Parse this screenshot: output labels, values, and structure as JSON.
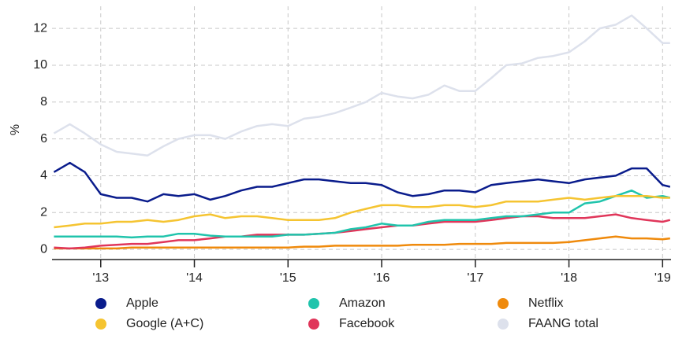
{
  "chart_data": {
    "type": "line",
    "ylabel": "%",
    "x": [
      2012.5,
      2012.67,
      2012.83,
      2013,
      2013.17,
      2013.33,
      2013.5,
      2013.67,
      2013.83,
      2014,
      2014.17,
      2014.33,
      2014.5,
      2014.67,
      2014.83,
      2015,
      2015.17,
      2015.33,
      2015.5,
      2015.67,
      2015.83,
      2016,
      2016.17,
      2016.33,
      2016.5,
      2016.67,
      2016.83,
      2017,
      2017.17,
      2017.33,
      2017.5,
      2017.67,
      2017.83,
      2018,
      2018.17,
      2018.33,
      2018.5,
      2018.67,
      2018.83,
      2019,
      2019.08
    ],
    "series": [
      {
        "name": "Apple",
        "color": "#0a1c8c",
        "values": [
          4.2,
          4.7,
          4.2,
          3.0,
          2.8,
          2.8,
          2.6,
          3.0,
          2.9,
          3.0,
          2.7,
          2.9,
          3.2,
          3.4,
          3.4,
          3.6,
          3.8,
          3.8,
          3.7,
          3.6,
          3.6,
          3.5,
          3.1,
          2.9,
          3.0,
          3.2,
          3.2,
          3.1,
          3.5,
          3.6,
          3.7,
          3.8,
          3.7,
          3.6,
          3.8,
          3.9,
          4.0,
          4.4,
          4.4,
          3.5,
          3.4
        ]
      },
      {
        "name": "Google (A+C)",
        "color": "#f5c431",
        "values": [
          1.2,
          1.3,
          1.4,
          1.4,
          1.5,
          1.5,
          1.6,
          1.5,
          1.6,
          1.8,
          1.9,
          1.7,
          1.8,
          1.8,
          1.7,
          1.6,
          1.6,
          1.6,
          1.7,
          2.0,
          2.2,
          2.4,
          2.4,
          2.3,
          2.3,
          2.4,
          2.4,
          2.3,
          2.4,
          2.6,
          2.6,
          2.6,
          2.7,
          2.8,
          2.7,
          2.8,
          2.9,
          2.9,
          2.9,
          2.8,
          2.8
        ]
      },
      {
        "name": "Amazon",
        "color": "#20c4ac",
        "values": [
          0.7,
          0.7,
          0.7,
          0.7,
          0.7,
          0.65,
          0.7,
          0.7,
          0.85,
          0.85,
          0.75,
          0.7,
          0.7,
          0.7,
          0.7,
          0.8,
          0.8,
          0.85,
          0.9,
          1.1,
          1.2,
          1.4,
          1.3,
          1.3,
          1.5,
          1.6,
          1.6,
          1.6,
          1.7,
          1.8,
          1.8,
          1.9,
          2.0,
          2.0,
          2.5,
          2.6,
          2.9,
          3.2,
          2.8,
          2.9,
          2.8
        ]
      },
      {
        "name": "Facebook",
        "color": "#e0365a",
        "values": [
          0.1,
          0.05,
          0.1,
          0.2,
          0.25,
          0.3,
          0.3,
          0.4,
          0.5,
          0.5,
          0.6,
          0.7,
          0.7,
          0.8,
          0.8,
          0.8,
          0.8,
          0.85,
          0.9,
          1.0,
          1.1,
          1.2,
          1.3,
          1.3,
          1.4,
          1.5,
          1.5,
          1.5,
          1.6,
          1.7,
          1.8,
          1.8,
          1.7,
          1.7,
          1.7,
          1.8,
          1.9,
          1.7,
          1.6,
          1.5,
          1.6
        ]
      },
      {
        "name": "Netflix",
        "color": "#ef8a0c",
        "values": [
          0.05,
          0.05,
          0.05,
          0.05,
          0.05,
          0.1,
          0.1,
          0.1,
          0.1,
          0.1,
          0.1,
          0.1,
          0.1,
          0.1,
          0.1,
          0.1,
          0.15,
          0.15,
          0.2,
          0.2,
          0.2,
          0.2,
          0.2,
          0.25,
          0.25,
          0.25,
          0.3,
          0.3,
          0.3,
          0.35,
          0.35,
          0.35,
          0.35,
          0.4,
          0.5,
          0.6,
          0.7,
          0.6,
          0.6,
          0.55,
          0.6
        ]
      },
      {
        "name": "FAANG total",
        "color": "#dde1ec",
        "values": [
          6.3,
          6.8,
          6.3,
          5.7,
          5.3,
          5.2,
          5.1,
          5.6,
          6.0,
          6.2,
          6.2,
          6.0,
          6.4,
          6.7,
          6.8,
          6.7,
          7.1,
          7.2,
          7.4,
          7.7,
          8.0,
          8.5,
          8.3,
          8.2,
          8.4,
          8.9,
          8.6,
          8.6,
          9.3,
          10.0,
          10.1,
          10.4,
          10.5,
          10.7,
          11.3,
          12.0,
          12.2,
          12.7,
          12.0,
          11.2,
          11.2
        ]
      }
    ],
    "xlim": [
      2012.48,
      2019.09
    ],
    "xticks": [
      {
        "value": 2013,
        "label": "'13"
      },
      {
        "value": 2014,
        "label": "'14"
      },
      {
        "value": 2015,
        "label": "'15"
      },
      {
        "value": 2016,
        "label": "'16"
      },
      {
        "value": 2017,
        "label": "'17"
      },
      {
        "value": 2018,
        "label": "'18"
      },
      {
        "value": 2019,
        "label": "'19"
      }
    ],
    "ylim": [
      -0.55,
      13.2
    ],
    "yticks": [
      0,
      2,
      4,
      6,
      8,
      10,
      12
    ],
    "grid": true
  }
}
